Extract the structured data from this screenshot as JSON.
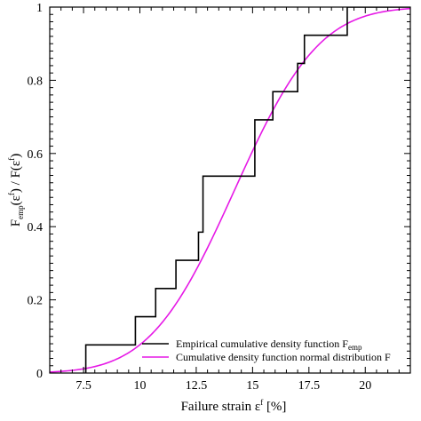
{
  "chart_data": {
    "type": "line",
    "xlim": [
      6,
      22
    ],
    "ylim": [
      0,
      1
    ],
    "x_ticks": [
      7.5,
      10,
      12.5,
      15,
      17.5,
      20
    ],
    "x_tick_labels": [
      "7.5",
      "10",
      "12.5",
      "15",
      "17.5",
      "20"
    ],
    "y_ticks": [
      0,
      0.2,
      0.4,
      0.6,
      0.8,
      1
    ],
    "y_tick_labels": [
      "0",
      "0.2",
      "0.4",
      "0.6",
      "0.8",
      "1"
    ],
    "xlabel": {
      "prefix": "Failure strain ε",
      "superscript": "f",
      "suffix": " [%]"
    },
    "ylabel": {
      "p1": "F",
      "p1_sub": "emp",
      "p2": "(ε",
      "p2_sup": "f",
      "p3": ") / F(ε",
      "p3_sup": "f",
      "p4": ")"
    },
    "grid": false,
    "legend_position": "bottom-right",
    "series": [
      {
        "name_main": "Empirical cumulative density function F",
        "name_sub": "emp",
        "color": "#000000",
        "style": "step",
        "points": [
          [
            7.6,
            0
          ],
          [
            7.6,
            0.077
          ],
          [
            9.8,
            0.077
          ],
          [
            9.8,
            0.154
          ],
          [
            10.7,
            0.154
          ],
          [
            10.7,
            0.231
          ],
          [
            11.6,
            0.231
          ],
          [
            11.6,
            0.308
          ],
          [
            12.6,
            0.308
          ],
          [
            12.6,
            0.385
          ],
          [
            12.8,
            0.385
          ],
          [
            12.8,
            0.538
          ],
          [
            15.1,
            0.538
          ],
          [
            15.1,
            0.692
          ],
          [
            15.9,
            0.692
          ],
          [
            15.9,
            0.769
          ],
          [
            17.0,
            0.769
          ],
          [
            17.0,
            0.846
          ],
          [
            17.3,
            0.846
          ],
          [
            17.3,
            0.923
          ],
          [
            19.2,
            0.923
          ],
          [
            19.2,
            1.0
          ],
          [
            22,
            1.0
          ]
        ]
      },
      {
        "name": "Cumulative density function normal distribution F",
        "color": "#e619e6",
        "style": "smooth",
        "mean": 14.2,
        "sd": 2.95
      }
    ]
  }
}
